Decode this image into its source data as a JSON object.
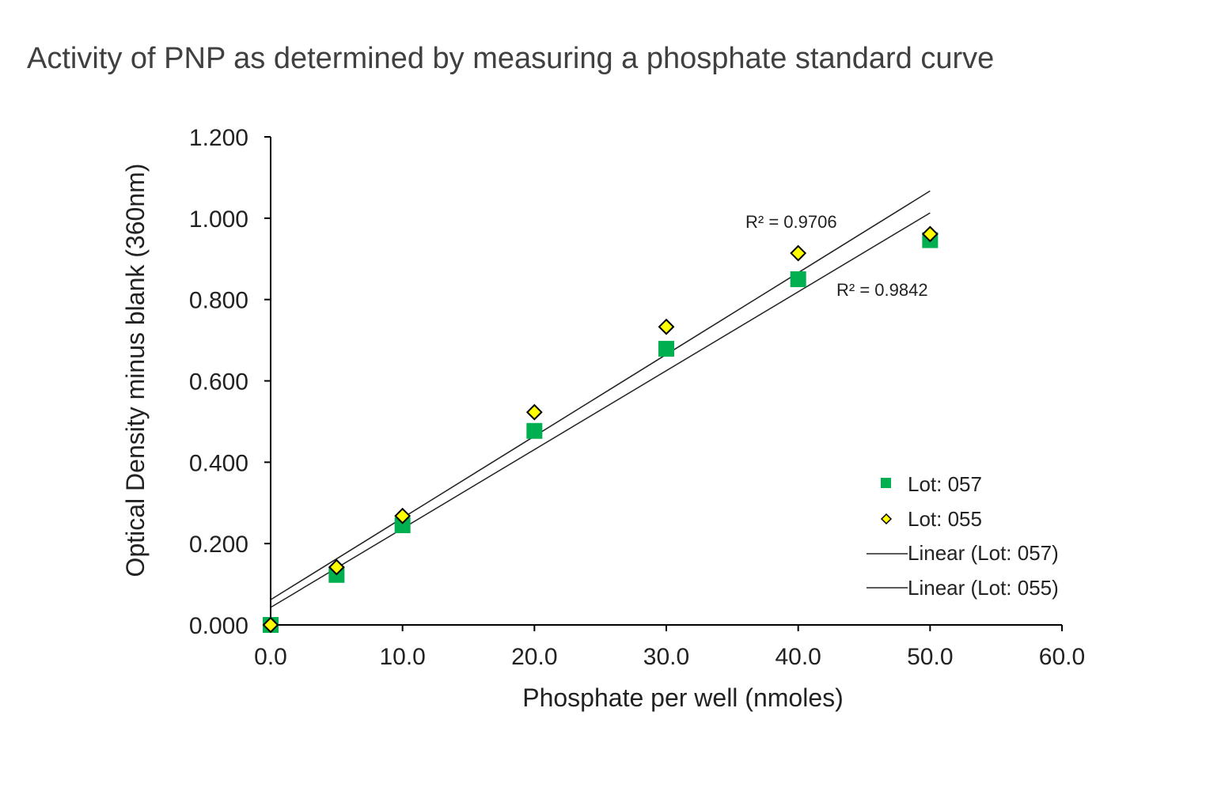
{
  "chart_data": {
    "type": "scatter",
    "title": "Activity of PNP as determined by measuring a phosphate standard curve",
    "xlabel": "Phosphate per well (nmoles)",
    "ylabel": "Optical Density minus blank (360nm)",
    "xlim": [
      0,
      60
    ],
    "ylim": [
      0,
      1.2
    ],
    "xticks": [
      "0.0",
      "10.0",
      "20.0",
      "30.0",
      "40.0",
      "50.0",
      "60.0"
    ],
    "yticks": [
      "0.000",
      "0.200",
      "0.400",
      "0.600",
      "0.800",
      "1.000",
      "1.200"
    ],
    "grid": false,
    "legend_position": "bottom-right",
    "series": [
      {
        "name": "Lot: 057",
        "marker": "square",
        "color": "#00b050",
        "x": [
          0,
          5,
          10,
          20,
          30,
          40,
          50
        ],
        "y": [
          0.0,
          0.123,
          0.245,
          0.477,
          0.679,
          0.85,
          0.946
        ]
      },
      {
        "name": "Lot: 055",
        "marker": "diamond",
        "color": "#ffff00",
        "x": [
          0,
          5,
          10,
          20,
          30,
          40,
          50
        ],
        "y": [
          0.0,
          0.142,
          0.268,
          0.523,
          0.733,
          0.914,
          0.961
        ]
      }
    ],
    "trendlines": [
      {
        "name": "Linear (Lot: 057)",
        "slope": 0.0194,
        "intercept": 0.043,
        "r2_label": "R² = 0.9842"
      },
      {
        "name": "Linear (Lot: 055)",
        "slope": 0.0201,
        "intercept": 0.062,
        "r2_label": "R² = 0.9706"
      }
    ]
  }
}
